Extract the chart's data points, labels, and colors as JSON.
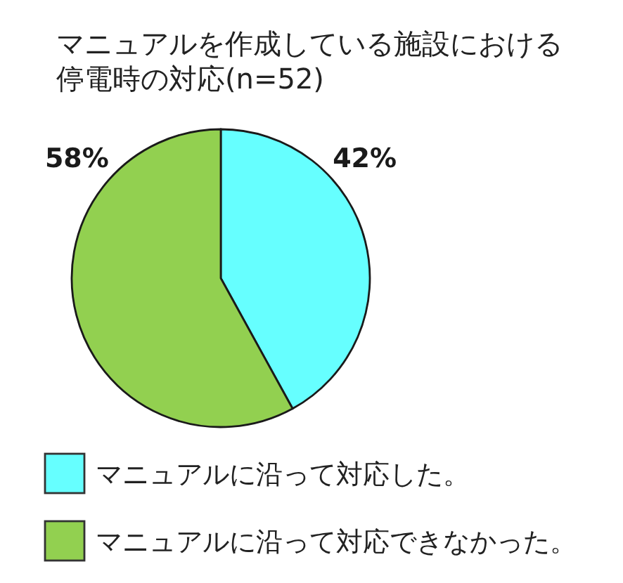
{
  "chart_data": {
    "type": "pie",
    "title": "マニュアルを作成している施設における停電時の対応(n=52)",
    "categories": [
      "マニュアルに沿って対応した。",
      "マニュアルに沿って対応できなかった。"
    ],
    "values": [
      42,
      58
    ],
    "colors": [
      "#66ffff",
      "#92d050"
    ],
    "value_labels": [
      "42%",
      "58%"
    ],
    "legend": "bottom"
  }
}
